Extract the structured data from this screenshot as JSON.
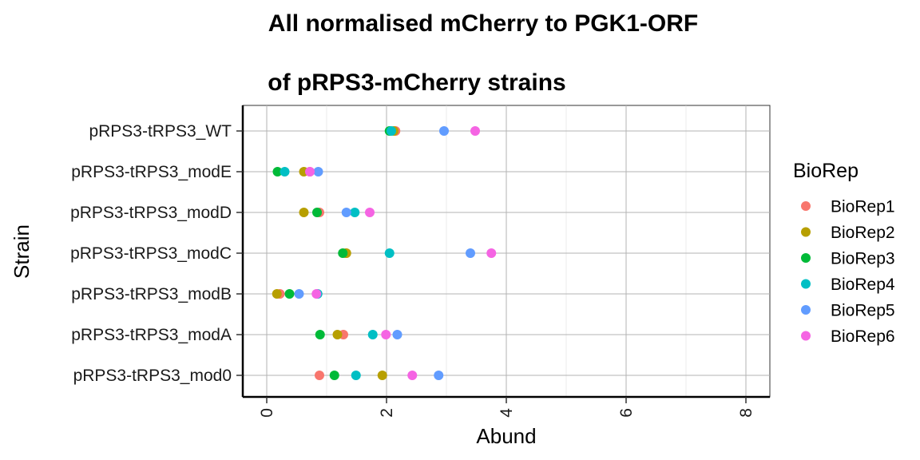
{
  "chart_data": {
    "type": "scatter",
    "title_lines": [
      "All normalised mCherry to PGK1-ORF",
      "of pRPS3-mCherry strains"
    ],
    "xlabel": "Abund",
    "ylabel": "Strain",
    "xlim": [
      -0.4,
      8.4
    ],
    "xticks": [
      0,
      2,
      4,
      6,
      8
    ],
    "xtick_labels": [
      "0",
      "2",
      "4",
      "6",
      "8"
    ],
    "grid": true,
    "categories": [
      "pRPS3-tRPS3_WT",
      "pRPS3-tRPS3_modE",
      "pRPS3-tRPS3_modD",
      "pRPS3-tRPS3_modC",
      "pRPS3-tRPS3_modB",
      "pRPS3-tRPS3_modA",
      "pRPS3-tRPS3_mod0"
    ],
    "legend": {
      "title": "BioRep",
      "position": "right"
    },
    "series": [
      {
        "name": "BioRep1",
        "color": "#F8766D",
        "values": [
          2.15,
          0.72,
          0.88,
          1.32,
          0.22,
          1.28,
          0.88
        ]
      },
      {
        "name": "BioRep2",
        "color": "#B79F00",
        "values": [
          2.12,
          0.62,
          0.62,
          1.33,
          0.17,
          1.18,
          1.93
        ]
      },
      {
        "name": "BioRep3",
        "color": "#00BA38",
        "values": [
          2.05,
          0.18,
          0.84,
          1.27,
          0.38,
          0.89,
          1.13
        ]
      },
      {
        "name": "BioRep4",
        "color": "#00BFC4",
        "values": [
          2.08,
          0.3,
          1.47,
          2.05,
          0.85,
          1.77,
          1.49
        ]
      },
      {
        "name": "BioRep5",
        "color": "#619CFF",
        "values": [
          2.96,
          0.86,
          1.33,
          3.4,
          0.54,
          2.18,
          2.87
        ]
      },
      {
        "name": "BioRep6",
        "color": "#F564E3",
        "values": [
          3.48,
          0.72,
          1.72,
          3.75,
          0.83,
          1.99,
          2.43
        ]
      }
    ]
  }
}
